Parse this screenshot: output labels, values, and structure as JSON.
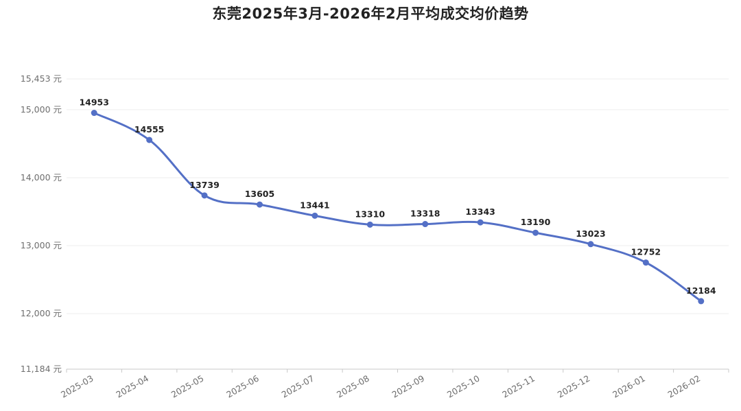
{
  "chart_data": {
    "type": "line",
    "title": "东莞2025年3月-2026年2月平均成交均价趋势",
    "xlabel": "",
    "ylabel": "",
    "categories": [
      "2025-03",
      "2025-04",
      "2025-05",
      "2025-06",
      "2025-07",
      "2025-08",
      "2025-09",
      "2025-10",
      "2025-11",
      "2025-12",
      "2026-01",
      "2026-02"
    ],
    "series": [
      {
        "values": [
          14953,
          14555,
          13739,
          13605,
          13441,
          13310,
          13318,
          13343,
          13190,
          13023,
          12752,
          12184
        ]
      }
    ],
    "data_labels": [
      "14953",
      "14555",
      "13739",
      "13605",
      "13441",
      "13310",
      "13318",
      "13343",
      "13190",
      "13023",
      "12752",
      "12184"
    ],
    "ylim": [
      11184,
      15453
    ],
    "y_ticks": [
      {
        "value": 15453,
        "label": "15,453 元"
      },
      {
        "value": 15000,
        "label": "15,000 元"
      },
      {
        "value": 14000,
        "label": "14,000 元"
      },
      {
        "value": 13000,
        "label": "13,000 元"
      },
      {
        "value": 12000,
        "label": "12,000 元"
      },
      {
        "value": 11184,
        "label": "11,184 元"
      }
    ],
    "grid": true,
    "smooth": true,
    "line_color": "#5470c6"
  }
}
